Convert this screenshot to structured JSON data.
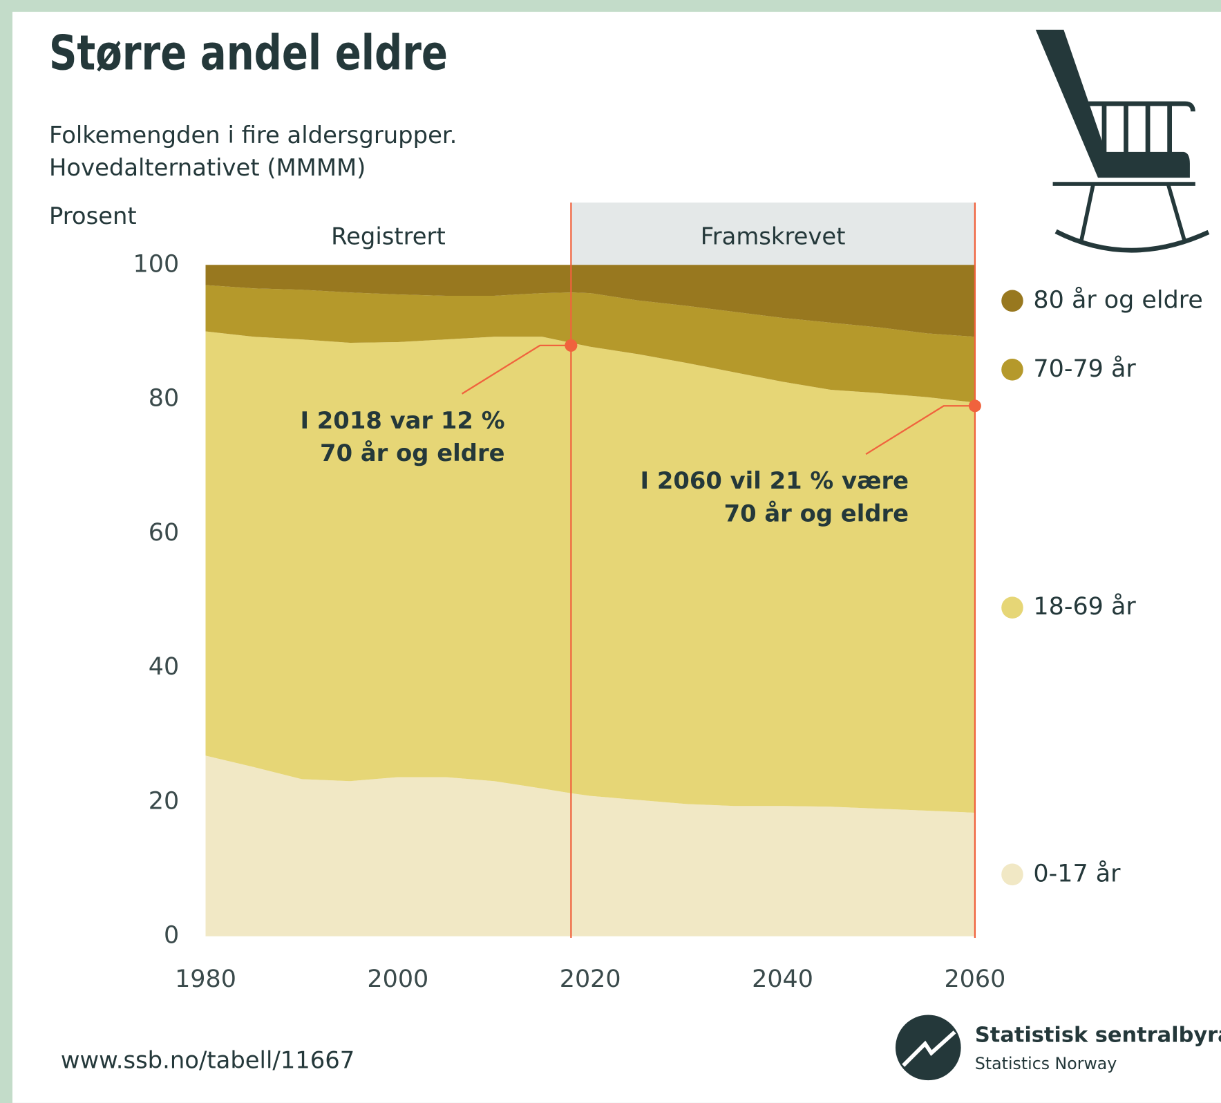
{
  "chart_data": {
    "type": "stacked_area",
    "title": "Større andel eldre",
    "subtitle": [
      "Folkemengden i fire aldersgrupper.",
      "Hovedalternativet (MMMM)"
    ],
    "ylabel": "Prosent",
    "x": [
      1980,
      1985,
      1990,
      1995,
      2000,
      2005,
      2010,
      2015,
      2018,
      2020,
      2025,
      2030,
      2035,
      2040,
      2045,
      2050,
      2055,
      2060
    ],
    "series": [
      {
        "name": "0-17 år",
        "color": "#f1e8c5",
        "values": [
          26.9,
          25.2,
          23.4,
          23.1,
          23.7,
          23.7,
          23.1,
          22.0,
          21.3,
          20.9,
          20.3,
          19.7,
          19.4,
          19.4,
          19.3,
          19.0,
          18.7,
          18.4
        ]
      },
      {
        "name": "18-69 år",
        "color": "#e6d676",
        "values": [
          63.2,
          64.1,
          65.5,
          65.3,
          64.8,
          65.2,
          66.2,
          67.3,
          67.1,
          66.9,
          66.4,
          65.7,
          64.6,
          63.2,
          62.1,
          61.9,
          61.6,
          61.1
        ]
      },
      {
        "name": "70-79 år",
        "color": "#b5992b",
        "values": [
          6.9,
          7.2,
          7.4,
          7.5,
          7.1,
          6.5,
          6.1,
          6.5,
          7.5,
          8.0,
          8.0,
          8.5,
          9.0,
          9.5,
          10.0,
          9.8,
          9.5,
          9.8
        ]
      },
      {
        "name": "80 år og eldre",
        "color": "#98781f",
        "values": [
          3.0,
          3.5,
          3.7,
          4.1,
          4.4,
          4.6,
          4.6,
          4.2,
          4.1,
          4.2,
          5.3,
          6.1,
          7.0,
          7.9,
          8.6,
          9.3,
          10.2,
          10.7
        ]
      }
    ],
    "xlim": [
      1980,
      2060
    ],
    "xticks": [
      1980,
      2000,
      2020,
      2040,
      2060
    ],
    "ylim": [
      0,
      100
    ],
    "yticks": [
      0,
      20,
      40,
      60,
      80,
      100
    ],
    "periods": [
      {
        "label": "Registrert",
        "start": 1980,
        "end": 2018,
        "shaded": false
      },
      {
        "label": "Framskrevet",
        "start": 2018,
        "end": 2060,
        "shaded": true
      }
    ],
    "annotations": [
      {
        "text": [
          "I 2018 var 12 %",
          "70 år og eldre"
        ],
        "x": 2018,
        "y": 88
      },
      {
        "text": [
          "I 2060 vil 21 % være",
          "70 år og eldre"
        ],
        "x": 2060,
        "y": 79
      }
    ],
    "source": "www.ssb.no/tabell/11667",
    "publisher": "Statistisk sentralbyrå",
    "publisher_en": "Statistics Norway"
  }
}
